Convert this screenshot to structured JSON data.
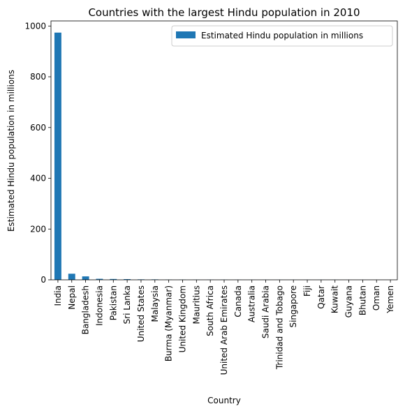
{
  "chart_data": {
    "type": "bar",
    "title": "Countries with the largest Hindu population in 2010",
    "xlabel": "Country",
    "ylabel": "Estimated Hindu population in millions",
    "ylim": [
      0,
      1020
    ],
    "yticks": [
      0,
      200,
      400,
      600,
      800,
      1000
    ],
    "grid": false,
    "legend_position": "top-right",
    "categories": [
      "India",
      "Nepal",
      "Bangladesh",
      "Indonesia",
      "Pakistan",
      "Sri Lanka",
      "United States",
      "Malaysia",
      "Burma (Myanmar)",
      "United Kingdom",
      "Mauritius",
      "South Africa",
      "United Arab Emirates",
      "Canada",
      "Australia",
      "Saudi Arabia",
      "Trinidad and Tobago",
      "Singapore",
      "Fiji",
      "Qatar",
      "Kuwait",
      "Guyana",
      "Bhutan",
      "Oman",
      "Yemen"
    ],
    "series": [
      {
        "name": "Estimated Hindu population in millions",
        "color": "#1f77b4",
        "values": [
          974,
          24,
          13.5,
          4,
          3.3,
          2.8,
          1.8,
          1.7,
          0.8,
          0.8,
          0.6,
          0.6,
          0.6,
          0.5,
          0.3,
          0.3,
          0.3,
          0.3,
          0.3,
          0.3,
          0.3,
          0.2,
          0.2,
          0.1,
          0.1
        ]
      }
    ]
  }
}
